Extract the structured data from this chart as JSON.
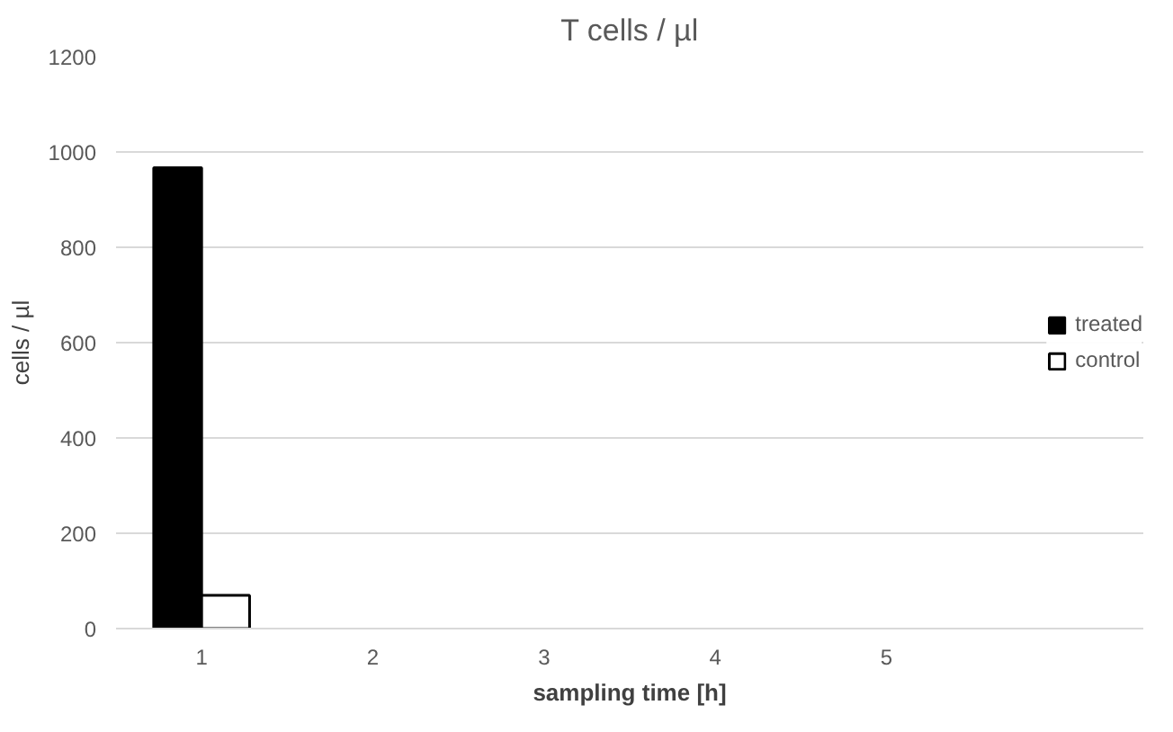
{
  "chart_data": {
    "type": "bar",
    "title": "T cells / µl",
    "xlabel": "sampling time [h]",
    "ylabel": "cells / µl",
    "categories": [
      "1",
      "2",
      "3",
      "4",
      "5"
    ],
    "series": [
      {
        "name": "treated",
        "color": "#000000",
        "values": [
          967,
          0,
          0,
          0,
          0
        ]
      },
      {
        "name": "control",
        "color": "#ffffff",
        "values": [
          70,
          0,
          0,
          0,
          0
        ]
      }
    ],
    "ylim": [
      0,
      1200
    ],
    "yticks": [
      0,
      200,
      400,
      600,
      800,
      1000,
      1200
    ],
    "grid": "y",
    "legend": "right"
  }
}
